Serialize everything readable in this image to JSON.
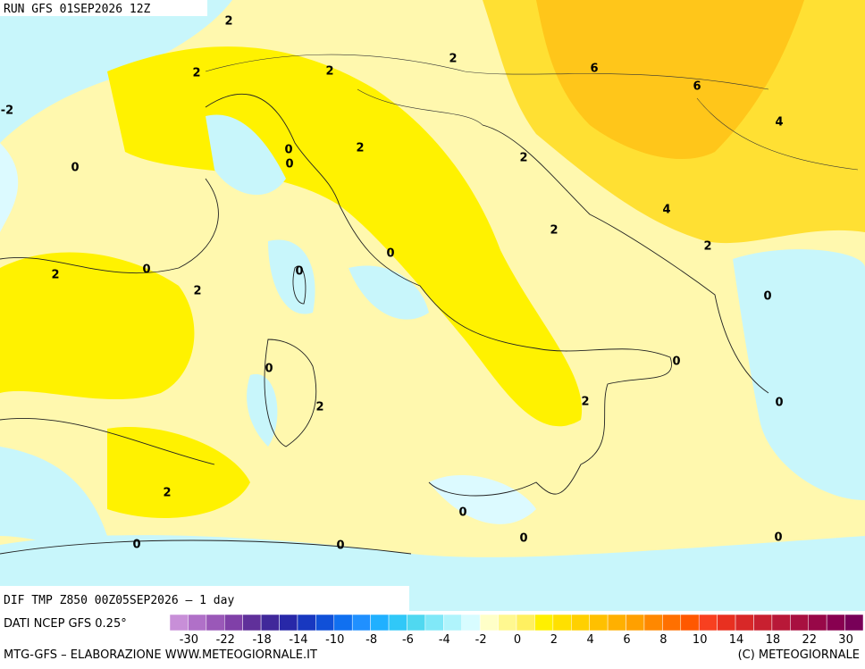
{
  "header": {
    "run": "RUN GFS 01SEP2026 12Z"
  },
  "map": {
    "contour_labels": [
      2,
      2,
      2,
      2,
      6,
      6,
      4,
      -2,
      0,
      0,
      0,
      2,
      2,
      4,
      2,
      2,
      0,
      0,
      2,
      2,
      0,
      0,
      0,
      0,
      2,
      2,
      0,
      2,
      0,
      0,
      0,
      0,
      0
    ]
  },
  "footer": {
    "title": "DIF TMP Z850 00Z05SEP2026 – 1 day",
    "source": "DATI NCEP GFS 0.25°",
    "credits": "MTG-GFS – ELABORAZIONE WWW.METEOGIORNALE.IT",
    "copyright": "(C) METEOGIORNALE"
  },
  "colorbar": {
    "labels": [
      -30,
      -22,
      -18,
      -14,
      -10,
      -8,
      -6,
      -4,
      -2,
      0,
      2,
      4,
      6,
      8,
      10,
      14,
      18,
      22,
      30
    ]
  }
}
